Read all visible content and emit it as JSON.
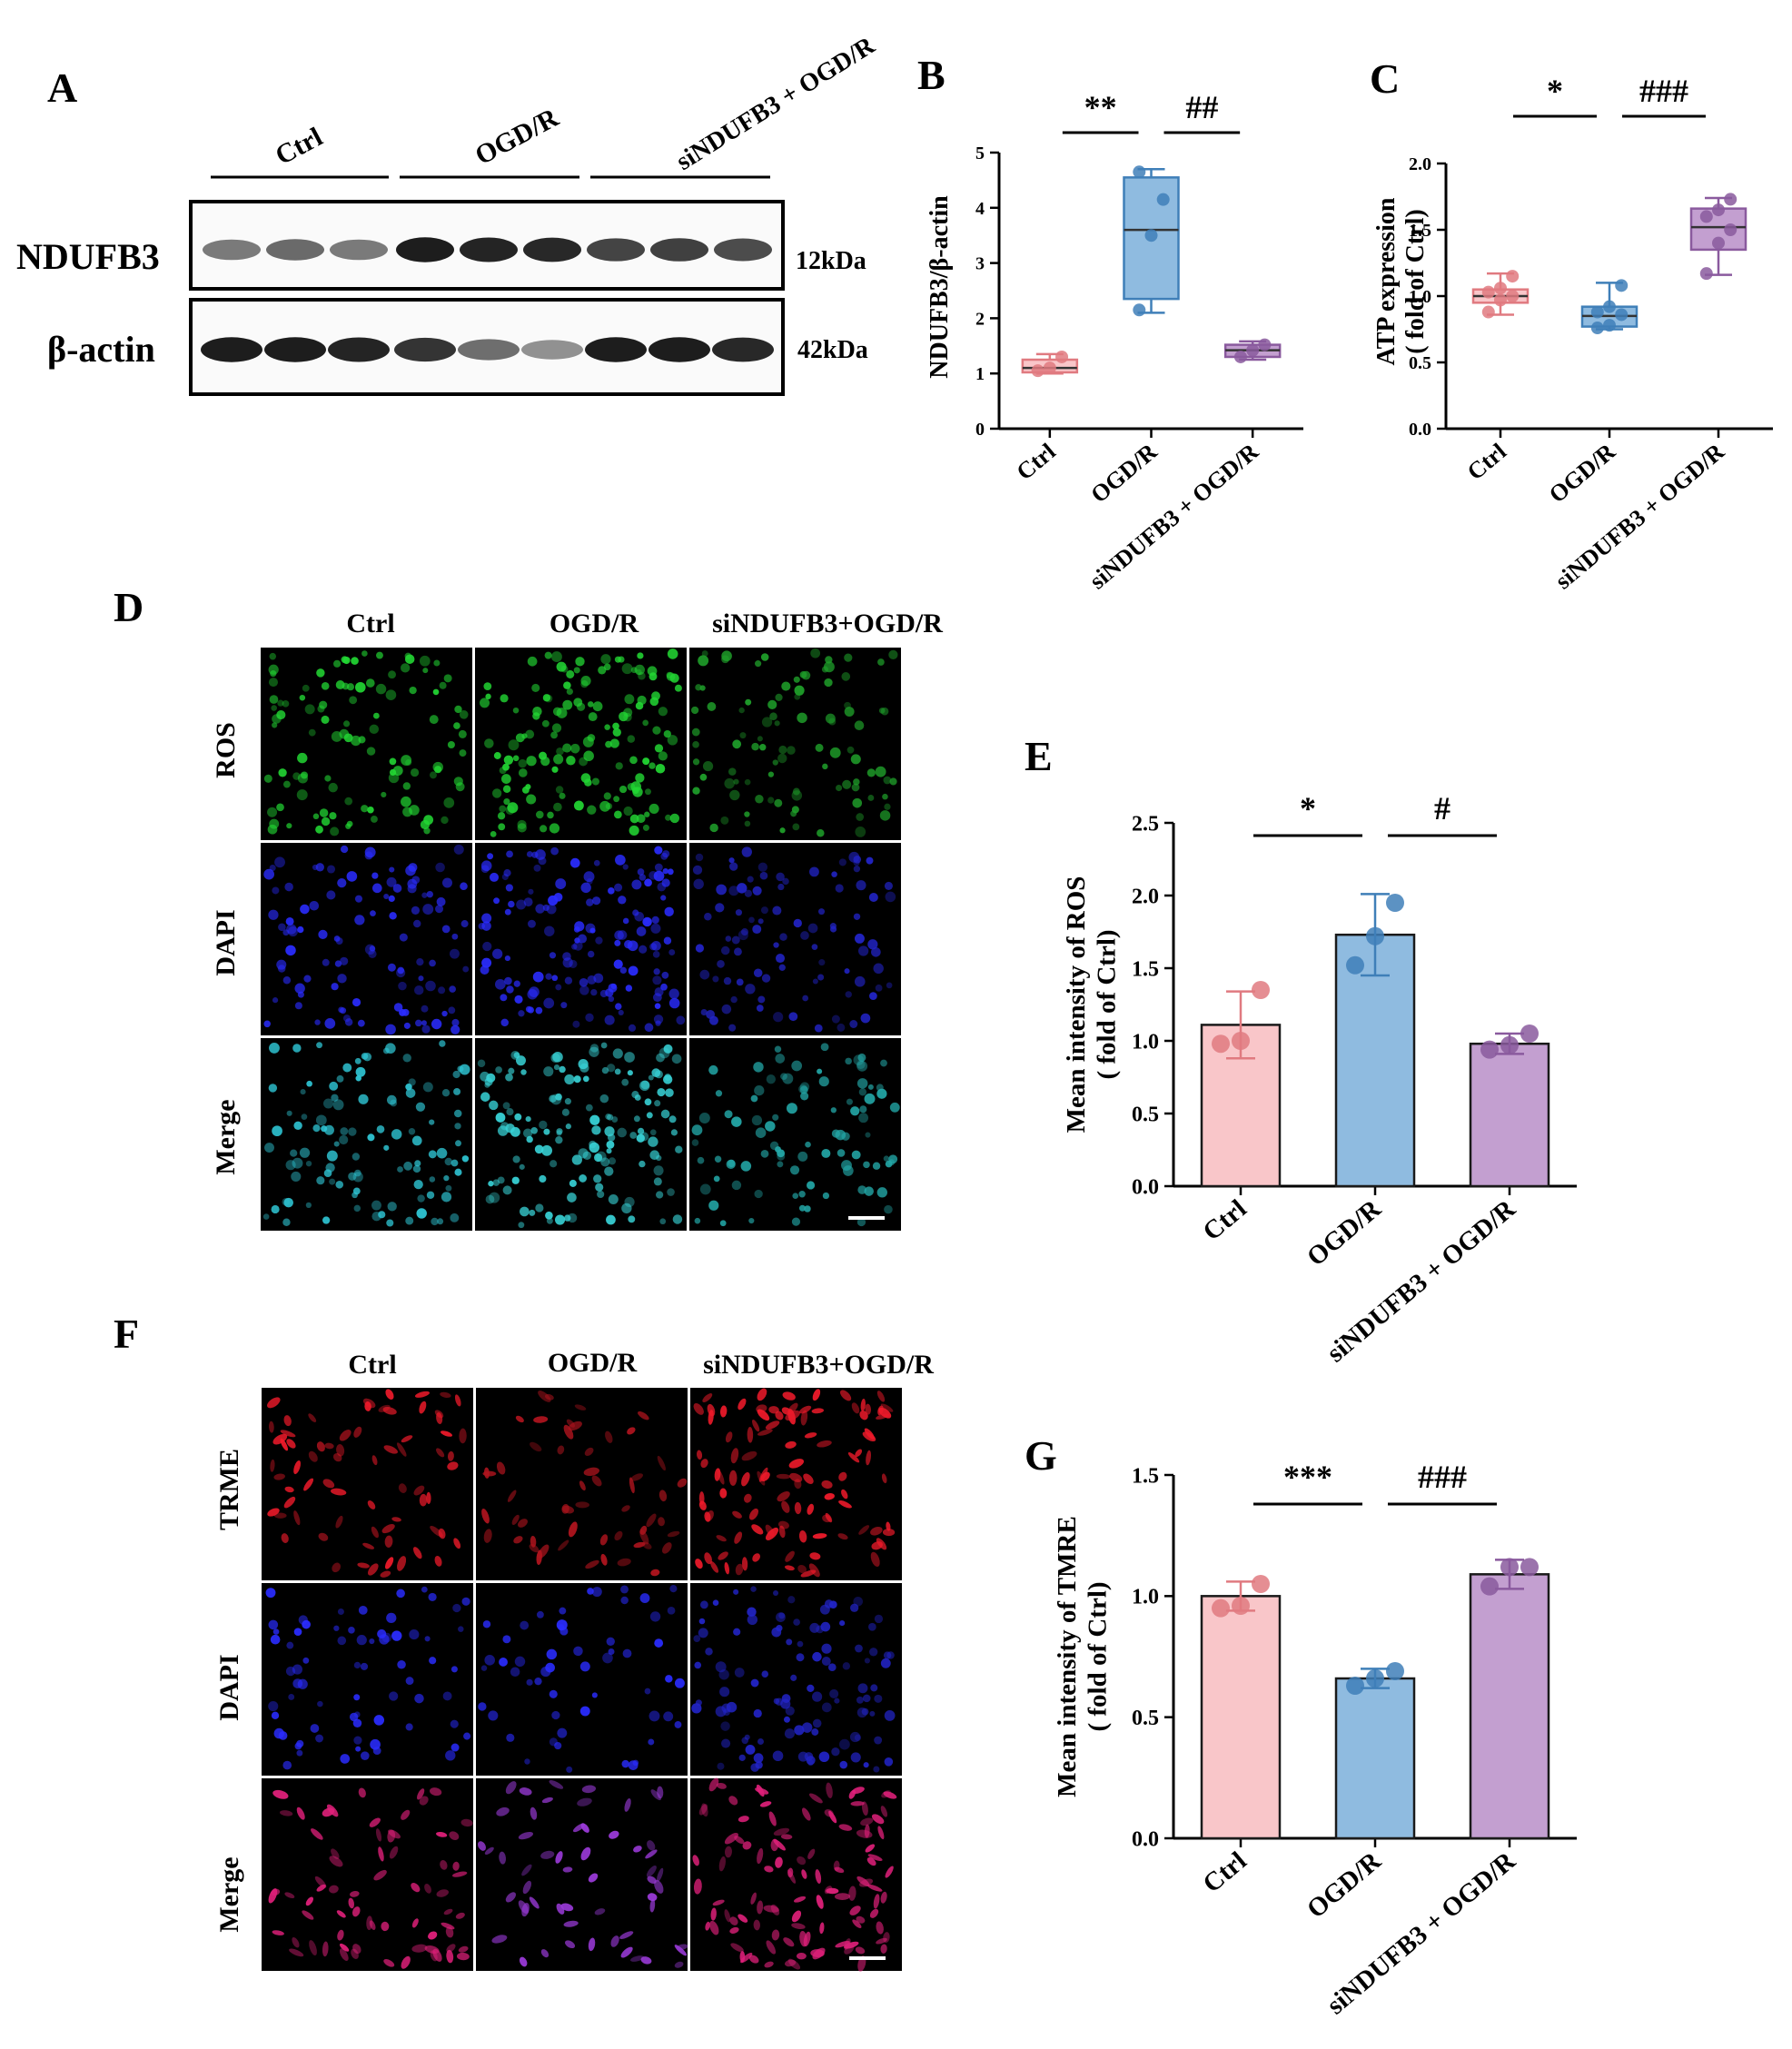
{
  "panels": {
    "A": {
      "letter": "A",
      "lanes": [
        "Ctrl",
        "OGD/R",
        "siNDUFB3 + OGD/R"
      ],
      "rows": [
        {
          "label": "NDUFB3",
          "size": "12kDa"
        },
        {
          "label": "β-actin",
          "size": "42kDa"
        }
      ]
    },
    "D": {
      "letter": "D",
      "columns": [
        "Ctrl",
        "OGD/R",
        "siNDUFB3+OGD/R"
      ],
      "rows": [
        "ROS",
        "DAPI",
        "Merge"
      ]
    },
    "F": {
      "letter": "F",
      "columns": [
        "Ctrl",
        "OGD/R",
        "siNDUFB3+OGD/R"
      ],
      "rows": [
        "TRME",
        "DAPI",
        "Merge"
      ]
    }
  },
  "colors": {
    "ctrl_fill": "#f9c6c9",
    "ctrl_edge": "#e07a80",
    "ogdr_fill": "#8fbbe0",
    "ogdr_edge": "#3f7fb8",
    "si_fill": "#c39fd0",
    "si_edge": "#8a5a9e",
    "ros_green": "#22d633",
    "dapi_blue": "#2a2cff",
    "merge_cyan": "#2fc7d6",
    "tmre_red": "#ee1a2a",
    "merge_magenta": "#e0207a"
  },
  "chart_data": [
    {
      "panel": "B",
      "letter": "B",
      "type": "box",
      "categories": [
        "Ctrl",
        "OGD/R",
        "siNDUFB3 + OGD/R"
      ],
      "ylabel": "NDUFB3/β-actin",
      "ylim": [
        0,
        5
      ],
      "yticks": [
        "0",
        "1",
        "2",
        "3",
        "4",
        "5"
      ],
      "series": [
        {
          "min": 1.0,
          "q1": 1.02,
          "median": 1.1,
          "q3": 1.25,
          "max": 1.35,
          "points": [
            1.05,
            1.1,
            1.3
          ]
        },
        {
          "min": 2.1,
          "q1": 2.35,
          "median": 3.6,
          "q3": 4.55,
          "max": 4.7,
          "points": [
            2.15,
            3.5,
            4.15,
            4.65
          ]
        },
        {
          "min": 1.25,
          "q1": 1.3,
          "median": 1.42,
          "q3": 1.52,
          "max": 1.58,
          "points": [
            1.3,
            1.42,
            1.52
          ]
        }
      ],
      "significance": [
        {
          "label": "**",
          "from": 0,
          "to": 1
        },
        {
          "label": "##",
          "from": 1,
          "to": 2
        }
      ]
    },
    {
      "panel": "C",
      "letter": "C",
      "type": "box",
      "categories": [
        "Ctrl",
        "OGD/R",
        "siNDUFB3 + OGD/R"
      ],
      "ylabel_lines": [
        "ATP expression",
        "( fold of Ctrl)"
      ],
      "ylim": [
        0,
        2
      ],
      "yticks": [
        "0.0",
        "0.5",
        "1.0",
        "1.5",
        "2.0"
      ],
      "series": [
        {
          "min": 0.86,
          "q1": 0.95,
          "median": 1.0,
          "q3": 1.05,
          "max": 1.17,
          "points": [
            0.88,
            0.97,
            1.0,
            1.03,
            1.06,
            1.15
          ]
        },
        {
          "min": 0.75,
          "q1": 0.77,
          "median": 0.85,
          "q3": 0.92,
          "max": 1.1,
          "points": [
            0.76,
            0.78,
            0.86,
            0.88,
            0.92,
            1.08
          ]
        },
        {
          "min": 1.16,
          "q1": 1.35,
          "median": 1.52,
          "q3": 1.66,
          "max": 1.74,
          "points": [
            1.17,
            1.4,
            1.5,
            1.6,
            1.65,
            1.73
          ]
        }
      ],
      "significance": [
        {
          "label": "*",
          "from": 0,
          "to": 1
        },
        {
          "label": "###",
          "from": 1,
          "to": 2
        }
      ]
    },
    {
      "panel": "E",
      "letter": "E",
      "type": "bar",
      "categories": [
        "Ctrl",
        "OGD/R",
        "siNDUFB3 + OGD/R"
      ],
      "ylabel_lines": [
        "Mean intensity of ROS",
        "( fold of Ctrl)"
      ],
      "ylim": [
        0,
        2.5
      ],
      "yticks": [
        "0.0",
        "0.5",
        "1.0",
        "1.5",
        "2.0",
        "2.5"
      ],
      "values": [
        1.11,
        1.73,
        0.98
      ],
      "errors": [
        0.23,
        0.28,
        0.07
      ],
      "points": [
        [
          0.98,
          1.0,
          1.35
        ],
        [
          1.52,
          1.72,
          1.95
        ],
        [
          0.94,
          0.97,
          1.05
        ]
      ],
      "significance": [
        {
          "label": "*",
          "from": 0,
          "to": 1
        },
        {
          "label": "#",
          "from": 1,
          "to": 2
        }
      ]
    },
    {
      "panel": "G",
      "letter": "G",
      "type": "bar",
      "categories": [
        "Ctrl",
        "OGD/R",
        "siNDUFB3 + OGD/R"
      ],
      "ylabel_lines": [
        "Mean intensity of TMRE",
        "( fold of Ctrl)"
      ],
      "ylim": [
        0,
        1.5
      ],
      "yticks": [
        "0.0",
        "0.5",
        "1.0",
        "1.5"
      ],
      "values": [
        1.0,
        0.66,
        1.09
      ],
      "errors": [
        0.06,
        0.04,
        0.06
      ],
      "points": [
        [
          0.95,
          0.96,
          1.05
        ],
        [
          0.63,
          0.66,
          0.69
        ],
        [
          1.04,
          1.12,
          1.12
        ]
      ],
      "significance": [
        {
          "label": "***",
          "from": 0,
          "to": 1
        },
        {
          "label": "###",
          "from": 1,
          "to": 2
        }
      ]
    }
  ]
}
